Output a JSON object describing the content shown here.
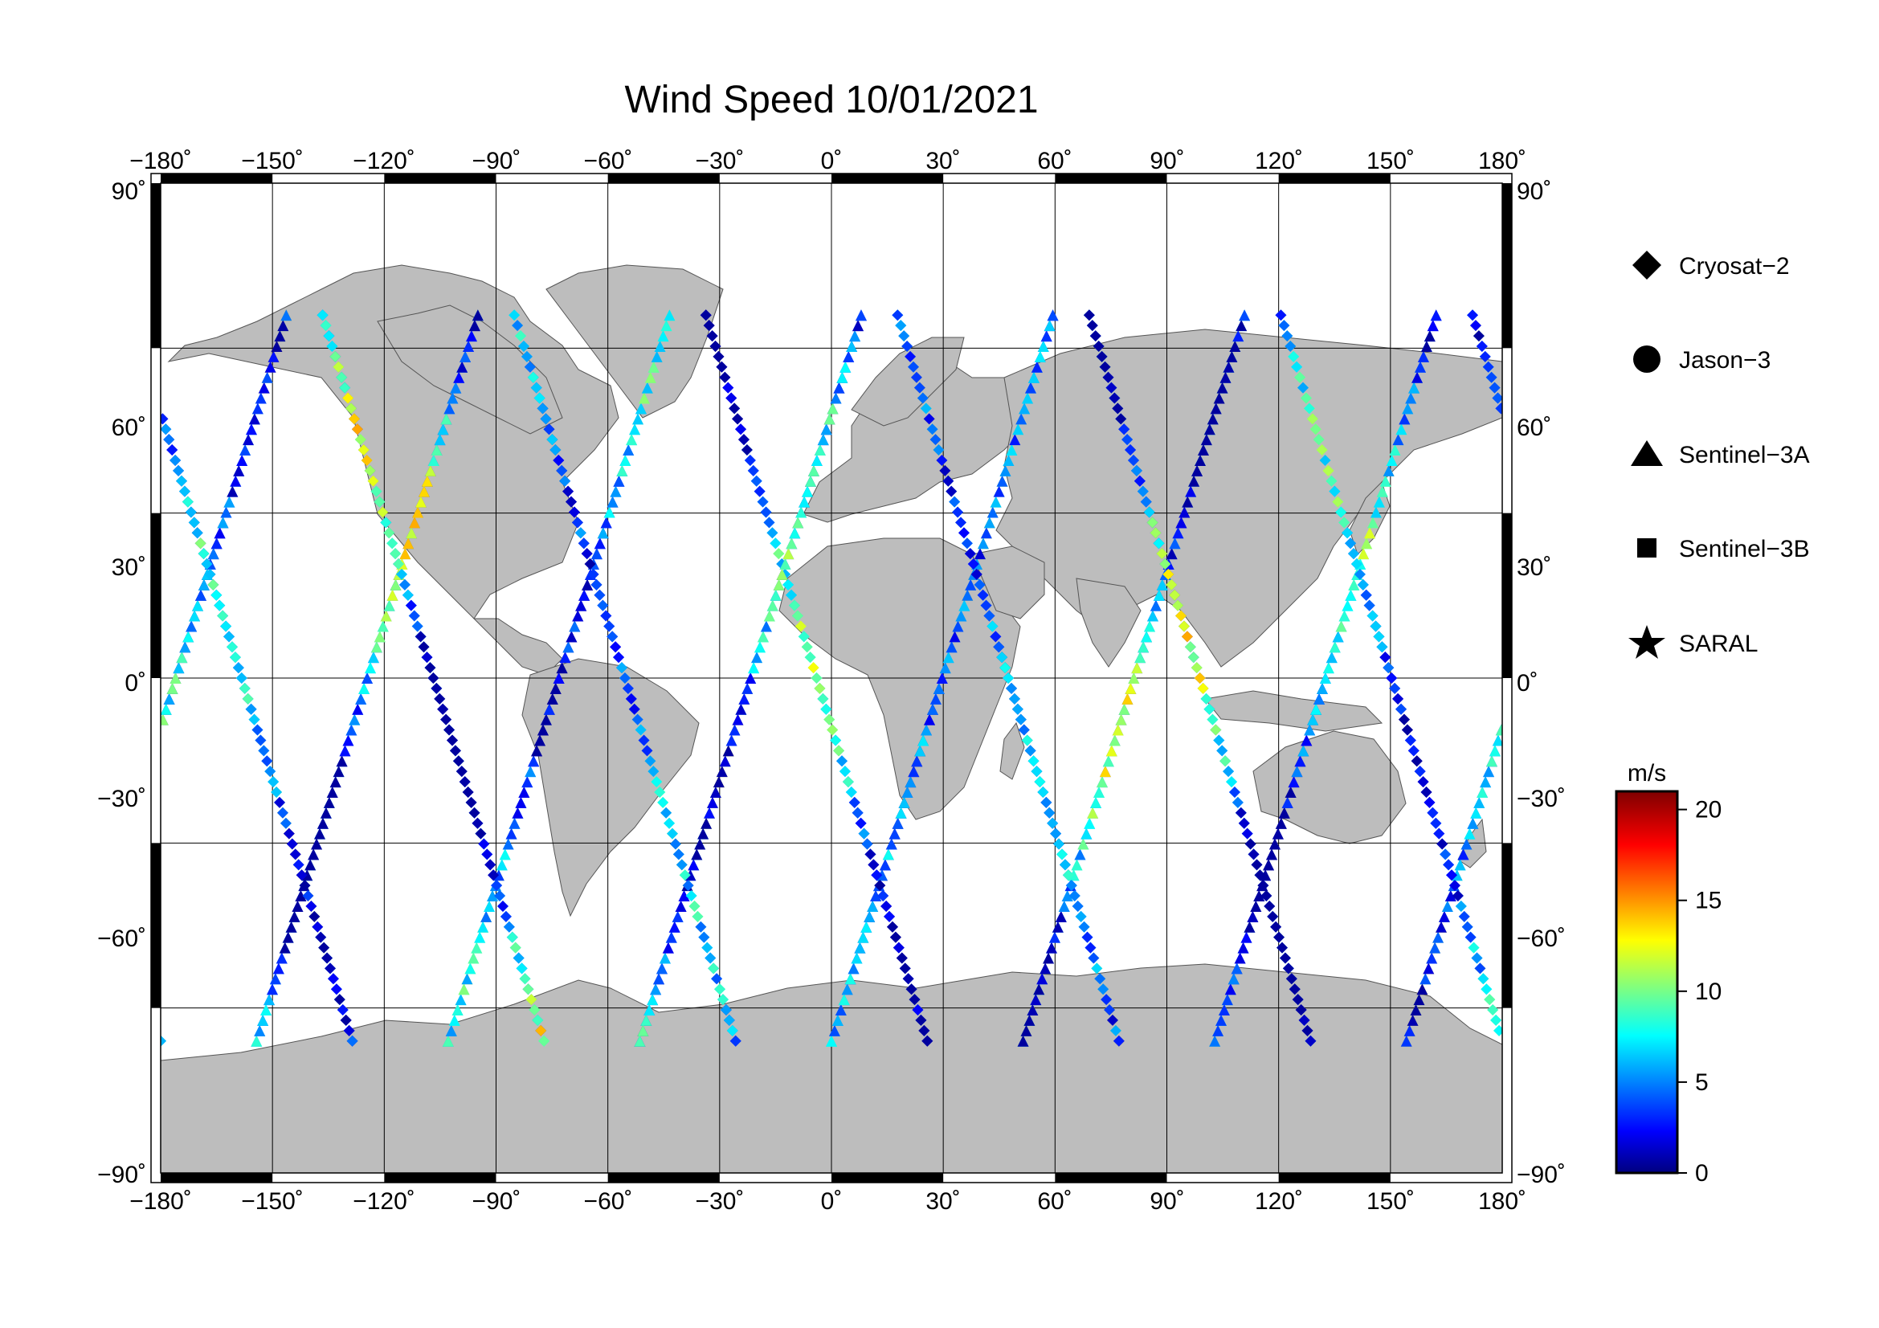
{
  "title": "Wind Speed 10/01/2021",
  "map": {
    "projection": "equirectangular",
    "lon_range": [
      -180,
      180
    ],
    "lat_range": [
      -90,
      90
    ],
    "grid_step_lon": 30,
    "grid_step_lat": 30,
    "land_color": "#bdbdbd",
    "ocean_color": "#ffffff",
    "lon_ticks": [
      "−180˚",
      "−150˚",
      "−120˚",
      "−90˚",
      "−60˚",
      "−30˚",
      "0˚",
      "30˚",
      "60˚",
      "90˚",
      "120˚",
      "150˚",
      "180˚"
    ],
    "lat_ticks": [
      "90˚",
      "60˚",
      "30˚",
      "0˚",
      "−30˚",
      "−60˚",
      "−90˚"
    ]
  },
  "legend": {
    "items": [
      {
        "name": "Cryosat−2",
        "marker": "diamond"
      },
      {
        "name": "Jason−3",
        "marker": "circle"
      },
      {
        "name": "Sentinel−3A",
        "marker": "triangle"
      },
      {
        "name": "Sentinel−3B",
        "marker": "square"
      },
      {
        "name": "SARAL",
        "marker": "star"
      }
    ]
  },
  "colorbar": {
    "unit": "m/s",
    "min": 0,
    "max": 21,
    "ticks": [
      "20",
      "15",
      "10",
      "5",
      "0"
    ],
    "colormap": "jet"
  }
}
